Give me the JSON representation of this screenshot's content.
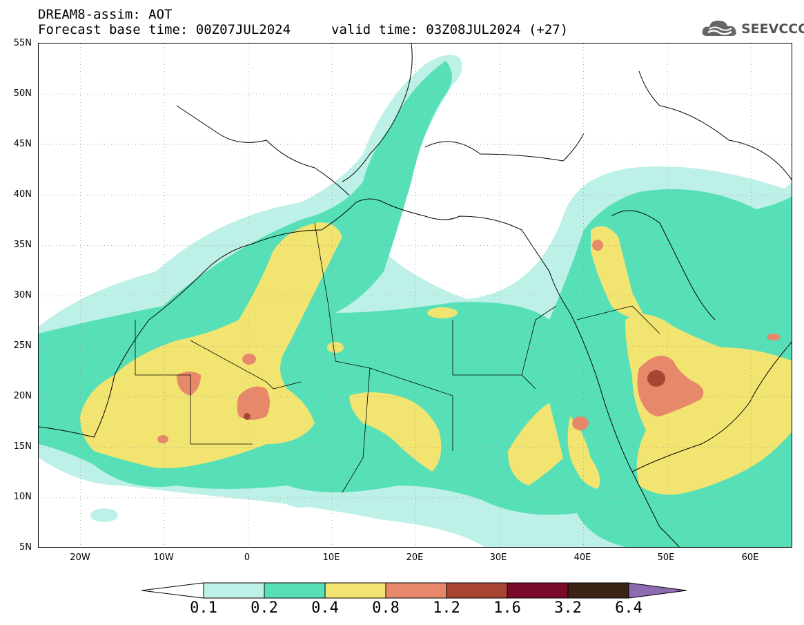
{
  "header": {
    "title": "DREAM8-assim: AOT",
    "base_time": "Forecast base time: 00Z07JUL2024",
    "valid_time": "valid time: 03Z08JUL2024 (+27)"
  },
  "logo": {
    "text": "SEEVCCC",
    "icon": "cloud-icon"
  },
  "map": {
    "lat_labels": [
      "55N",
      "50N",
      "45N",
      "40N",
      "35N",
      "30N",
      "25N",
      "20N",
      "15N",
      "10N",
      "5N"
    ],
    "lon_labels": [
      "20W",
      "10W",
      "0",
      "10E",
      "20E",
      "30E",
      "40E",
      "50E",
      "60E"
    ],
    "lat_range": [
      5,
      55
    ],
    "lon_range": [
      -25,
      65
    ]
  },
  "legend": {
    "labels": [
      "0.1",
      "0.2",
      "0.4",
      "0.8",
      "1.2",
      "1.6",
      "3.2",
      "6.4"
    ],
    "colors": [
      "#ffffff",
      "#bdf0e6",
      "#57e0b8",
      "#f2e470",
      "#e8886a",
      "#a84432",
      "#7a0a2a",
      "#3a2415",
      "#8c6bb0"
    ]
  },
  "colors": {
    "c01": "#bdf0e6",
    "c02": "#57e0b8",
    "c04": "#f2e470",
    "c08": "#e8886a",
    "c12": "#a84432"
  }
}
